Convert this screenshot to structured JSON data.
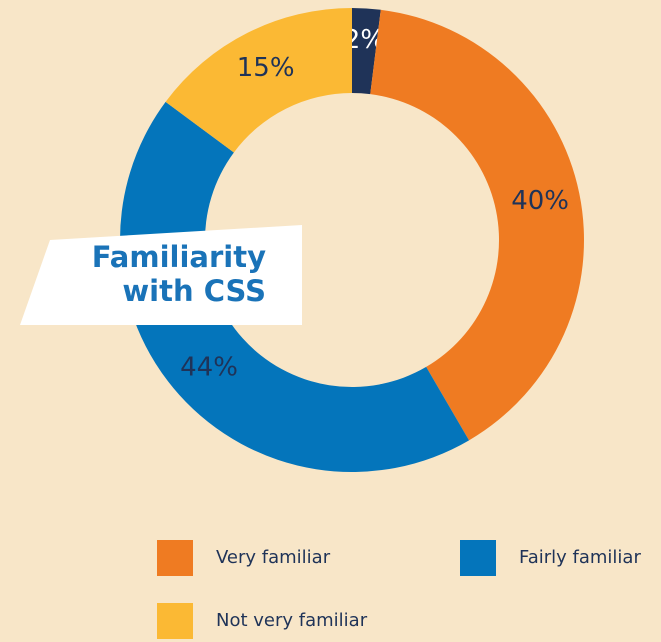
{
  "chart_data": {
    "type": "donut",
    "title": "Familiarity with CSS",
    "categories": [
      null,
      "Very familiar",
      "Fairly familiar",
      "Not very familiar"
    ],
    "values": [
      2,
      40,
      44,
      15
    ],
    "value_labels": [
      "2%",
      "40%",
      "44%",
      "15%"
    ],
    "colors": [
      "#1f3358",
      "#ef7b22",
      "#0475bb",
      "#fbb934"
    ]
  }
}
